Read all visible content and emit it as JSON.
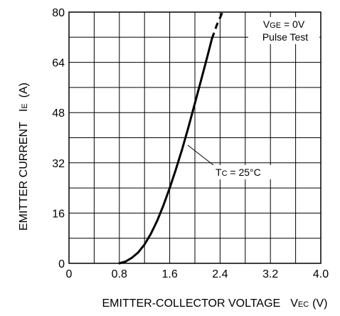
{
  "chart_data": {
    "type": "line",
    "xlabel": {
      "main": "EMITTER-COLLECTOR VOLTAGE",
      "sym": "V",
      "sub": "EC",
      "unit": "(V)"
    },
    "ylabel": {
      "main": "EMITTER CURRENT",
      "sym": "I",
      "sub": "E",
      "unit": "(A)"
    },
    "xlim": [
      0,
      4.0
    ],
    "ylim": [
      0,
      80
    ],
    "x_ticks": [
      "0",
      "0.8",
      "1.6",
      "2.4",
      "3.2",
      "4.0"
    ],
    "y_ticks": [
      "0",
      "16",
      "32",
      "48",
      "64",
      "80"
    ],
    "grid": true,
    "conditions": [
      {
        "sym": "V",
        "sub": "GE",
        "rest": " = 0V"
      },
      {
        "text": "Pulse Test"
      }
    ],
    "series": [
      {
        "name": "TC = 25°C",
        "label": {
          "sym": "T",
          "sub": "C",
          "rest": " = 25°C"
        },
        "x": [
          0.8,
          0.9,
          1.0,
          1.1,
          1.2,
          1.3,
          1.4,
          1.5,
          1.6,
          1.7,
          1.8,
          1.9,
          2.0,
          2.1,
          2.2,
          2.27
        ],
        "y": [
          0.0,
          0.6,
          1.8,
          3.5,
          6.0,
          9.4,
          13.5,
          18.5,
          24.0,
          30.0,
          36.5,
          43.5,
          51.0,
          58.5,
          66.0,
          71.5
        ],
        "extrapolated": {
          "x": [
            2.27,
            2.35,
            2.44
          ],
          "y": [
            71.5,
            76.0,
            80.0
          ]
        }
      }
    ]
  }
}
